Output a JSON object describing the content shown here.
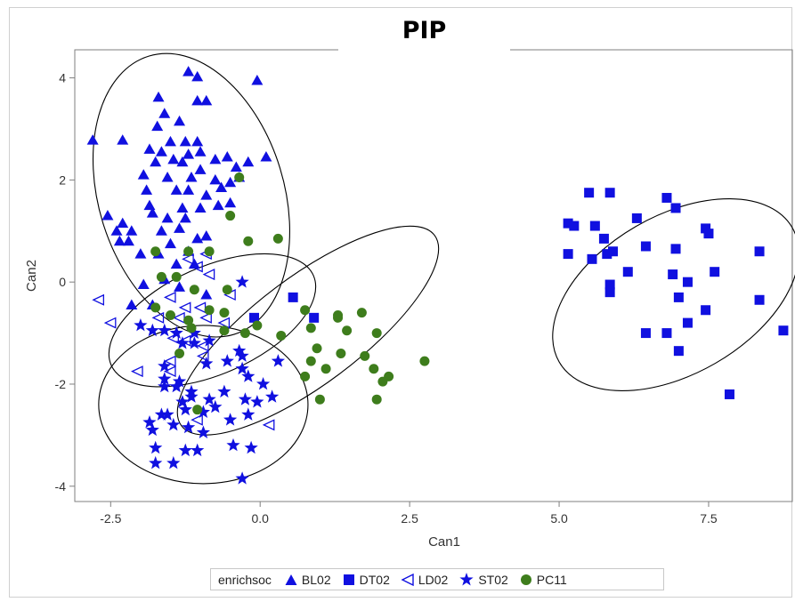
{
  "chart_data": {
    "type": "scatter",
    "title": "PIP",
    "xlabel": "Can1",
    "ylabel": "Can2",
    "xlim": [
      -3.1,
      8.9
    ],
    "ylim": [
      -4.3,
      4.55
    ],
    "x_ticks": [
      -2.5,
      0.0,
      2.5,
      5.0,
      7.5
    ],
    "x_tick_labels": [
      "-2.5",
      "0.0",
      "2.5",
      "5.0",
      "7.5"
    ],
    "y_ticks": [
      -4,
      -2,
      0,
      2,
      4
    ],
    "y_tick_labels": [
      "-4",
      "-2",
      "0",
      "2",
      "4"
    ],
    "grid": false,
    "legend": {
      "title": "enrichsoc",
      "position": "bottom",
      "entries": [
        "BL02",
        "DT02",
        "LD02",
        "ST02",
        "PC11"
      ]
    },
    "colors": {
      "blue": "#1010e0",
      "green": "#3e7d1c",
      "ellipse": "#000000"
    },
    "series": [
      {
        "name": "BL02",
        "marker": "filled-triangle",
        "color": "#1010e0",
        "points": [
          [
            -1.2,
            4.12
          ],
          [
            -1.05,
            4.02
          ],
          [
            -0.9,
            3.55
          ],
          [
            -1.05,
            3.55
          ],
          [
            -1.7,
            3.62
          ],
          [
            -0.05,
            3.95
          ],
          [
            -2.8,
            2.78
          ],
          [
            -2.3,
            2.78
          ],
          [
            -1.72,
            3.05
          ],
          [
            -1.6,
            3.3
          ],
          [
            -1.35,
            3.15
          ],
          [
            -1.25,
            2.75
          ],
          [
            -1.05,
            2.75
          ],
          [
            -1.5,
            2.75
          ],
          [
            -1.85,
            2.6
          ],
          [
            -1.65,
            2.55
          ],
          [
            -1.75,
            2.35
          ],
          [
            -1.45,
            2.4
          ],
          [
            -1.3,
            2.35
          ],
          [
            -1.2,
            2.5
          ],
          [
            -1.0,
            2.55
          ],
          [
            -0.75,
            2.4
          ],
          [
            -0.55,
            2.45
          ],
          [
            -0.4,
            2.25
          ],
          [
            -0.2,
            2.35
          ],
          [
            0.1,
            2.45
          ],
          [
            -1.95,
            2.1
          ],
          [
            -1.55,
            2.05
          ],
          [
            -1.15,
            2.05
          ],
          [
            -1.0,
            2.2
          ],
          [
            -0.75,
            2.0
          ],
          [
            -0.65,
            1.85
          ],
          [
            -0.5,
            1.95
          ],
          [
            -0.35,
            2.05
          ],
          [
            -1.9,
            1.8
          ],
          [
            -1.4,
            1.8
          ],
          [
            -1.2,
            1.8
          ],
          [
            -0.9,
            1.7
          ],
          [
            -0.7,
            1.5
          ],
          [
            -0.5,
            1.55
          ],
          [
            -1.85,
            1.5
          ],
          [
            -1.3,
            1.45
          ],
          [
            -1.0,
            1.45
          ],
          [
            -2.55,
            1.3
          ],
          [
            -2.3,
            1.15
          ],
          [
            -1.8,
            1.35
          ],
          [
            -1.55,
            1.25
          ],
          [
            -1.25,
            1.25
          ],
          [
            -2.4,
            1.0
          ],
          [
            -2.15,
            1.0
          ],
          [
            -1.65,
            1.0
          ],
          [
            -1.35,
            1.05
          ],
          [
            -2.35,
            0.8
          ],
          [
            -2.2,
            0.8
          ],
          [
            -1.5,
            0.75
          ],
          [
            -1.05,
            0.85
          ],
          [
            -2.0,
            0.55
          ],
          [
            -1.7,
            0.55
          ],
          [
            -1.2,
            0.6
          ],
          [
            -0.9,
            0.9
          ],
          [
            -1.4,
            0.35
          ],
          [
            -1.1,
            0.35
          ],
          [
            -1.95,
            -0.05
          ],
          [
            -1.6,
            0.05
          ],
          [
            -1.35,
            -0.1
          ],
          [
            -0.9,
            -0.25
          ],
          [
            -2.15,
            -0.45
          ],
          [
            -1.8,
            -0.45
          ]
        ]
      },
      {
        "name": "DT02",
        "marker": "filled-square",
        "color": "#1010e0",
        "points": [
          [
            5.5,
            1.75
          ],
          [
            5.85,
            1.75
          ],
          [
            6.8,
            1.65
          ],
          [
            6.3,
            1.25
          ],
          [
            6.95,
            1.45
          ],
          [
            5.15,
            1.15
          ],
          [
            5.25,
            1.1
          ],
          [
            5.6,
            1.1
          ],
          [
            5.75,
            0.85
          ],
          [
            5.15,
            0.55
          ],
          [
            5.9,
            0.6
          ],
          [
            6.45,
            0.7
          ],
          [
            6.95,
            0.65
          ],
          [
            7.45,
            1.05
          ],
          [
            7.5,
            0.95
          ],
          [
            8.35,
            0.6
          ],
          [
            5.55,
            0.45
          ],
          [
            5.8,
            0.55
          ],
          [
            6.15,
            0.2
          ],
          [
            6.9,
            0.15
          ],
          [
            7.15,
            0.0
          ],
          [
            7.6,
            0.2
          ],
          [
            5.85,
            -0.05
          ],
          [
            5.85,
            -0.2
          ],
          [
            7.0,
            -0.3
          ],
          [
            8.35,
            -0.35
          ],
          [
            7.45,
            -0.55
          ],
          [
            7.15,
            -0.8
          ],
          [
            6.45,
            -1.0
          ],
          [
            6.8,
            -1.0
          ],
          [
            7.0,
            -1.35
          ],
          [
            8.75,
            -0.95
          ],
          [
            7.85,
            -2.2
          ],
          [
            0.55,
            -0.3
          ],
          [
            0.9,
            -0.7
          ],
          [
            -0.1,
            -0.7
          ]
        ]
      },
      {
        "name": "LD02",
        "marker": "open-triangle-left",
        "color": "#1010e0",
        "points": [
          [
            -2.7,
            -0.35
          ],
          [
            -2.5,
            -0.8
          ],
          [
            -1.2,
            0.45
          ],
          [
            -1.05,
            0.3
          ],
          [
            -0.9,
            0.55
          ],
          [
            -0.85,
            0.15
          ],
          [
            -0.5,
            -0.25
          ],
          [
            -1.5,
            -0.3
          ],
          [
            -1.25,
            -0.5
          ],
          [
            -1.0,
            -0.5
          ],
          [
            -1.7,
            -0.7
          ],
          [
            -1.35,
            -0.7
          ],
          [
            -0.9,
            -0.7
          ],
          [
            -0.6,
            -0.8
          ],
          [
            -1.45,
            -1.1
          ],
          [
            -1.25,
            -1.15
          ],
          [
            -0.95,
            -1.25
          ],
          [
            -0.95,
            -1.45
          ],
          [
            -1.5,
            -1.55
          ],
          [
            -1.5,
            -1.75
          ],
          [
            -2.05,
            -1.75
          ],
          [
            -1.05,
            -2.7
          ],
          [
            0.15,
            -2.8
          ]
        ]
      },
      {
        "name": "ST02",
        "marker": "filled-star",
        "color": "#1010e0",
        "points": [
          [
            -0.3,
            0.0
          ],
          [
            -2.0,
            -0.85
          ],
          [
            -1.8,
            -0.95
          ],
          [
            -1.6,
            -0.95
          ],
          [
            -1.4,
            -1.0
          ],
          [
            -1.1,
            -1.0
          ],
          [
            -1.3,
            -1.2
          ],
          [
            -1.1,
            -1.2
          ],
          [
            -0.85,
            -1.15
          ],
          [
            -0.35,
            -1.35
          ],
          [
            -0.3,
            -1.45
          ],
          [
            -1.6,
            -1.65
          ],
          [
            -0.9,
            -1.6
          ],
          [
            -0.55,
            -1.55
          ],
          [
            0.3,
            -1.55
          ],
          [
            -0.3,
            -1.7
          ],
          [
            -0.2,
            -1.85
          ],
          [
            -1.6,
            -1.9
          ],
          [
            -1.35,
            -1.95
          ],
          [
            -1.6,
            -2.05
          ],
          [
            -1.4,
            -2.05
          ],
          [
            -1.15,
            -2.15
          ],
          [
            0.05,
            -2.0
          ],
          [
            -1.3,
            -2.35
          ],
          [
            -1.15,
            -2.25
          ],
          [
            -0.85,
            -2.3
          ],
          [
            -0.6,
            -2.15
          ],
          [
            -0.25,
            -2.3
          ],
          [
            -0.05,
            -2.35
          ],
          [
            0.2,
            -2.25
          ],
          [
            -1.65,
            -2.6
          ],
          [
            -1.25,
            -2.5
          ],
          [
            -0.95,
            -2.55
          ],
          [
            -0.75,
            -2.45
          ],
          [
            -0.5,
            -2.7
          ],
          [
            -0.2,
            -2.6
          ],
          [
            -1.8,
            -2.9
          ],
          [
            -1.45,
            -2.8
          ],
          [
            -1.2,
            -2.85
          ],
          [
            -0.95,
            -2.95
          ],
          [
            -1.75,
            -3.25
          ],
          [
            -1.25,
            -3.3
          ],
          [
            -1.05,
            -3.3
          ],
          [
            -0.45,
            -3.2
          ],
          [
            -0.15,
            -3.25
          ],
          [
            -1.75,
            -3.55
          ],
          [
            -1.45,
            -3.55
          ],
          [
            -0.3,
            -3.85
          ],
          [
            -1.85,
            -2.75
          ],
          [
            -1.55,
            -2.6
          ]
        ]
      },
      {
        "name": "PC11",
        "marker": "filled-circle",
        "color": "#3e7d1c",
        "points": [
          [
            -0.35,
            2.05
          ],
          [
            -0.5,
            1.3
          ],
          [
            -1.75,
            0.6
          ],
          [
            -1.2,
            0.6
          ],
          [
            -0.85,
            0.6
          ],
          [
            -0.2,
            0.8
          ],
          [
            0.3,
            0.85
          ],
          [
            -1.65,
            0.1
          ],
          [
            -1.4,
            0.1
          ],
          [
            -0.55,
            -0.15
          ],
          [
            -1.1,
            -0.15
          ],
          [
            -1.75,
            -0.5
          ],
          [
            -0.85,
            -0.55
          ],
          [
            -0.6,
            -0.6
          ],
          [
            -1.5,
            -0.65
          ],
          [
            -1.2,
            -0.75
          ],
          [
            -0.05,
            -0.85
          ],
          [
            -1.15,
            -0.9
          ],
          [
            0.75,
            -0.55
          ],
          [
            0.85,
            -0.9
          ],
          [
            1.3,
            -0.65
          ],
          [
            1.3,
            -0.7
          ],
          [
            1.7,
            -0.6
          ],
          [
            1.95,
            -1.0
          ],
          [
            1.45,
            -0.95
          ],
          [
            -0.6,
            -0.95
          ],
          [
            -1.35,
            -1.4
          ],
          [
            -0.25,
            -1.0
          ],
          [
            0.35,
            -1.05
          ],
          [
            0.95,
            -1.3
          ],
          [
            0.85,
            -1.55
          ],
          [
            1.35,
            -1.4
          ],
          [
            1.75,
            -1.45
          ],
          [
            1.1,
            -1.7
          ],
          [
            1.9,
            -1.7
          ],
          [
            2.15,
            -1.85
          ],
          [
            2.05,
            -1.95
          ],
          [
            0.75,
            -1.85
          ],
          [
            2.75,
            -1.55
          ],
          [
            1.0,
            -2.3
          ],
          [
            1.95,
            -2.3
          ],
          [
            -1.05,
            -2.5
          ]
        ]
      }
    ],
    "ellipses": [
      {
        "group": "BL02",
        "center": [
          -1.15,
          1.7
        ],
        "radii": [
          1.55,
          2.85
        ],
        "rotation_deg": -17
      },
      {
        "group": "PC11",
        "center": [
          0.8,
          -0.95
        ],
        "radii": [
          2.65,
          1.05
        ],
        "rotation_deg": -37
      },
      {
        "group": "LD02",
        "center": [
          -0.8,
          -0.75
        ],
        "radii": [
          1.85,
          1.05
        ],
        "rotation_deg": -24
      },
      {
        "group": "ST02",
        "center": [
          -0.95,
          -2.4
        ],
        "radii": [
          1.75,
          1.55
        ],
        "rotation_deg": 0
      },
      {
        "group": "DT02",
        "center": [
          6.95,
          -0.25
        ],
        "radii": [
          2.25,
          1.55
        ],
        "rotation_deg": -30
      }
    ]
  }
}
